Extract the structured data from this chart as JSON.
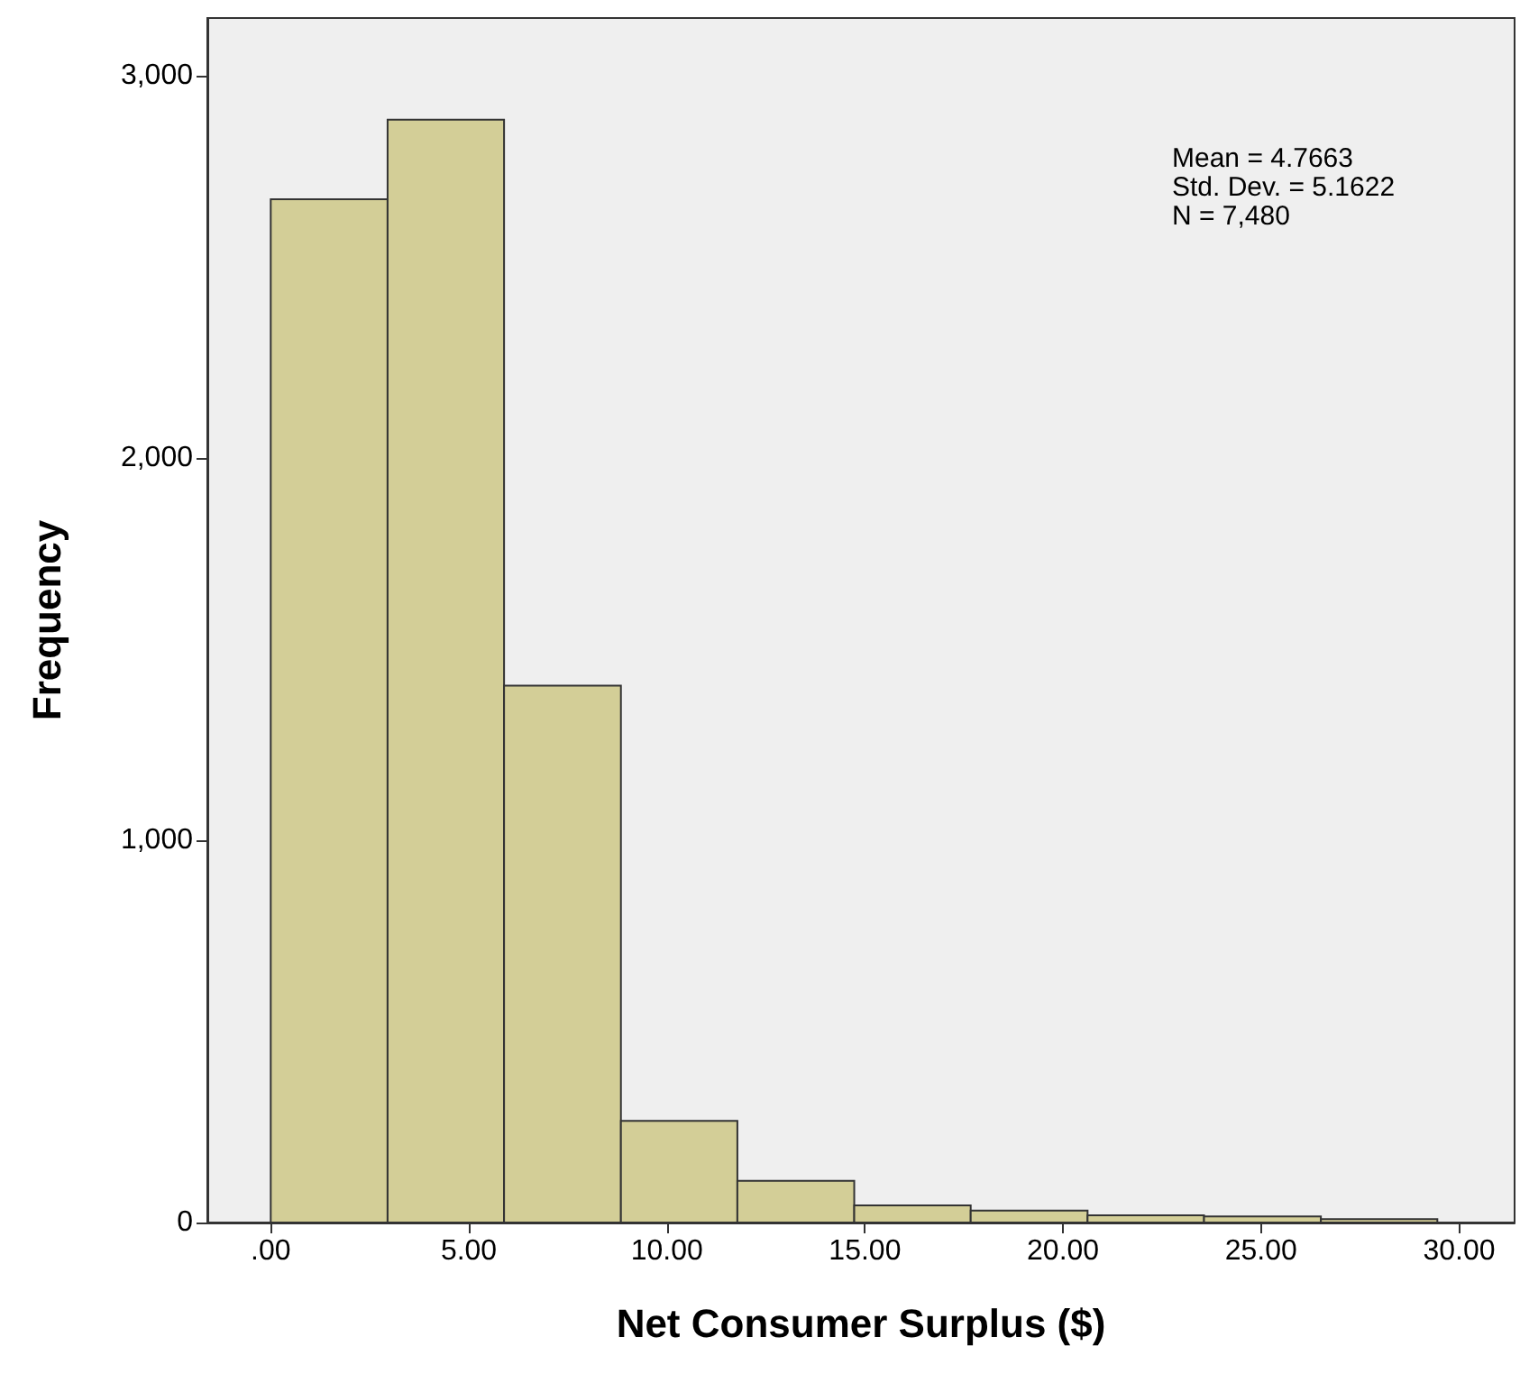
{
  "chart_data": {
    "type": "histogram",
    "xlabel": "Net Consumer Surplus ($)",
    "ylabel": "Frequency",
    "bins": [
      0,
      2.95,
      5.89,
      8.84,
      11.78,
      14.73,
      17.67,
      20.62,
      23.56,
      26.51,
      29.45
    ],
    "values": [
      2676,
      2884,
      1404,
      266,
      109,
      45,
      31,
      19,
      16,
      9
    ],
    "color": "#d3ce97",
    "xlim": [
      -1.6,
      31.4
    ],
    "ylim": [
      0,
      3150
    ],
    "xticks": [
      {
        "value": 0,
        "label": ".00"
      },
      {
        "value": 5,
        "label": "5.00"
      },
      {
        "value": 10,
        "label": "10.00"
      },
      {
        "value": 15,
        "label": "15.00"
      },
      {
        "value": 20,
        "label": "20.00"
      },
      {
        "value": 25,
        "label": "25.00"
      },
      {
        "value": 30,
        "label": "30.00"
      }
    ],
    "yticks": [
      {
        "value": 0,
        "label": "0"
      },
      {
        "value": 1000,
        "label": "1,000"
      },
      {
        "value": 2000,
        "label": "2,000"
      },
      {
        "value": 3000,
        "label": "3,000"
      }
    ],
    "grid": false,
    "annotations": [
      "Mean = 4.7663",
      "Std. Dev. = 5.1622",
      "N = 7,480"
    ]
  }
}
